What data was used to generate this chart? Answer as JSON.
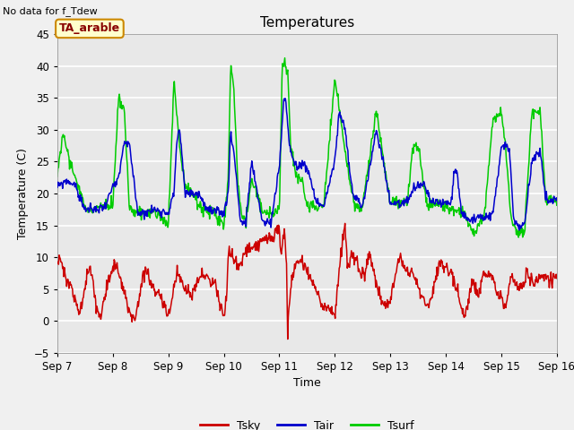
{
  "title": "Temperatures",
  "xlabel": "Time",
  "ylabel": "Temperature (C)",
  "note": "No data for f_Tdew",
  "station_label": "TA_arable",
  "ylim": [
    -5,
    45
  ],
  "yticks": [
    -5,
    0,
    5,
    10,
    15,
    20,
    25,
    30,
    35,
    40,
    45
  ],
  "fig_bg_color": "#f0f0f0",
  "plot_bg_color": "#e8e8e8",
  "grid_color": "#ffffff",
  "tsky_color": "#cc0000",
  "tair_color": "#0000cc",
  "tsurf_color": "#00cc00",
  "x_tick_labels": [
    "Sep 7",
    "Sep 8",
    "Sep 9",
    "Sep 10",
    "Sep 11",
    "Sep 12",
    "Sep 13",
    "Sep 14",
    "Sep 15",
    "Sep 16"
  ],
  "station_box_face": "#ffffcc",
  "station_box_edge": "#cc8800",
  "station_text_color": "#880000"
}
